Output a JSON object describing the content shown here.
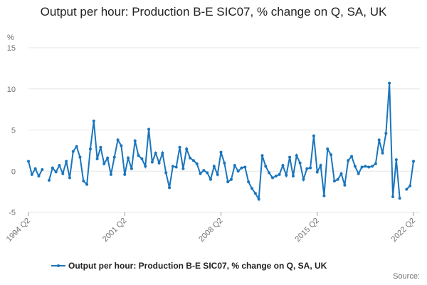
{
  "chart_data": {
    "type": "line",
    "title": "Output per hour: Production B-E SIC07, % change on Q, SA, UK",
    "y_label": "%",
    "source_label": "Source:",
    "categories": [
      "1994 Q2",
      null,
      null,
      null,
      null,
      null,
      null,
      null,
      null,
      null,
      null,
      null,
      null,
      null,
      null,
      null,
      null,
      null,
      null,
      null,
      null,
      null,
      null,
      null,
      null,
      null,
      null,
      null,
      "2001 Q2",
      null,
      null,
      null,
      null,
      null,
      null,
      null,
      null,
      null,
      null,
      null,
      null,
      null,
      null,
      null,
      null,
      null,
      null,
      null,
      null,
      null,
      null,
      null,
      null,
      null,
      null,
      null,
      "2008 Q2",
      null,
      null,
      null,
      null,
      null,
      null,
      null,
      null,
      null,
      null,
      null,
      null,
      null,
      null,
      null,
      null,
      null,
      null,
      null,
      null,
      null,
      null,
      null,
      null,
      null,
      null,
      null,
      "2015 Q2",
      null,
      null,
      null,
      null,
      null,
      null,
      null,
      null,
      null,
      null,
      null,
      null,
      null,
      null,
      null,
      null,
      null,
      null,
      null,
      null,
      null,
      null,
      null,
      null,
      null,
      null,
      null,
      "2022 Q2"
    ],
    "series": [
      {
        "name": "Output per hour: Production B-E SIC07, % change on Q, SA, UK",
        "color": "#1a75bc",
        "values": [
          1.2,
          -0.4,
          0.3,
          -0.6,
          0.2,
          null,
          -1.1,
          0.4,
          -0.1,
          0.7,
          -0.3,
          1.2,
          -0.8,
          2.4,
          3.0,
          1.7,
          -1.2,
          -1.6,
          2.7,
          6.1,
          1.5,
          2.9,
          0.9,
          1.6,
          -0.4,
          1.7,
          3.8,
          3.1,
          -0.4,
          1.6,
          0.3,
          3.7,
          1.9,
          1.5,
          0.6,
          5.1,
          1.1,
          2.2,
          1.0,
          2.2,
          -0.2,
          -2.0,
          0.6,
          0.5,
          2.9,
          0.3,
          2.7,
          1.6,
          1.3,
          0.9,
          -0.3,
          0.1,
          -0.2,
          -1.0,
          0.6,
          -0.4,
          2.3,
          1.0,
          -1.3,
          -1.0,
          0.7,
          0.0,
          0.4,
          0.5,
          -1.3,
          -2.1,
          -2.7,
          -3.4,
          1.9,
          0.6,
          -0.2,
          -0.8,
          -0.6,
          -0.4,
          0.7,
          -0.5,
          1.7,
          -0.6,
          1.9,
          1.0,
          -1.0,
          0.3,
          0.4,
          4.3,
          -0.1,
          0.7,
          -3.0,
          2.7,
          2.0,
          -1.2,
          -1.0,
          -0.3,
          -1.7,
          1.3,
          1.8,
          0.6,
          -0.3,
          0.5,
          0.6,
          0.5,
          0.6,
          0.9,
          3.8,
          2.2,
          4.6,
          10.7,
          -3.1,
          1.4,
          -3.3,
          null,
          -2.2,
          -1.8,
          1.2
        ]
      }
    ],
    "ylim": [
      -5,
      15
    ],
    "yticks": [
      -5,
      0,
      5,
      10,
      15
    ],
    "grid": true
  }
}
